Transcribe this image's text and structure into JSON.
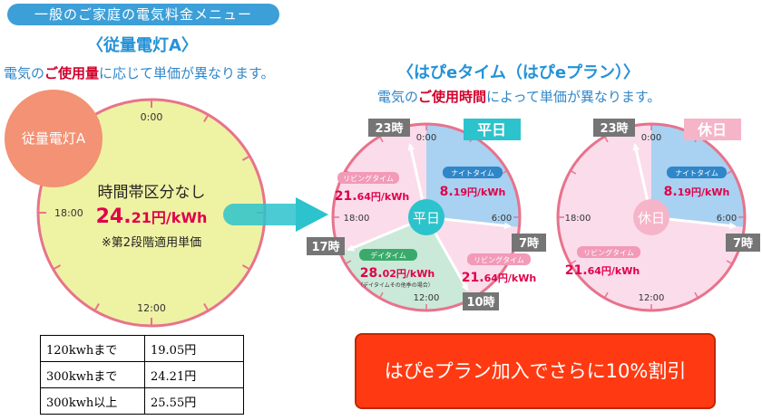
{
  "header": {
    "menu_pill": "一般のご家庭の電気料金メニュー",
    "left_title": "〈従量電灯A〉",
    "left_desc_pre": "電気の",
    "left_desc_em": "ご使用量",
    "left_desc_post": "に応じて単価が異なります。",
    "right_title": "〈はぴeタイム（はぴeプラン）〉",
    "right_desc_pre": "電気の",
    "right_desc_em": "ご使用時間",
    "right_desc_post": "によって単価が異なります。"
  },
  "left_clock": {
    "badge": "従量電灯A",
    "t0": "0:00",
    "t18": "18:00",
    "t12": "12:00",
    "line1": "時間帯区分なし",
    "price_big": "24.",
    "price_small": "21円/kWh",
    "note": "※第2段階適用単価"
  },
  "weekday_clock": {
    "header": "平日",
    "center": "平日",
    "h23": "23時",
    "h17": "17時",
    "h7": "7時",
    "h10": "10時",
    "t0": "0:00",
    "t6": "6:00",
    "t18": "18:00",
    "t12": "12:00",
    "night_label": "ナイトタイム",
    "night_big": "8.",
    "night_small": "19円/kWh",
    "living_label": "リビングタイム",
    "living_big": "21.",
    "living_small": "64円/kWh",
    "day_label": "デイタイム",
    "day_big": "28.",
    "day_small": "02円/kWh",
    "day_note": "（デイタイムその他季の場合）",
    "living2_label": "リビングタイム",
    "living2_big": "21.",
    "living2_small": "64円/kWh"
  },
  "holiday_clock": {
    "header": "休日",
    "center": "休日",
    "h23": "23時",
    "h7": "7時",
    "t0": "0:00",
    "t6": "6:00",
    "t18": "18:00",
    "t12": "12:00",
    "night_label": "ナイトタイム",
    "night_big": "8.",
    "night_small": "19円/kWh",
    "living_label": "リビングタイム",
    "living_big": "21.",
    "living_small": "64円/kWh"
  },
  "rates_table": [
    {
      "tier": "120kwhまで",
      "price": "19.05円"
    },
    {
      "tier": "300kwhまで",
      "price": "24.21円"
    },
    {
      "tier": "300kwh以上",
      "price": "25.55円"
    }
  ],
  "discount_box": "はぴeプラン加入でさらに10%割引",
  "colors": {
    "accent_blue": "#2592d6",
    "price_red": "#e0004a",
    "night_blue": "#a9d1f1",
    "living_pink": "#fbdcea",
    "day_green": "#cbe9d9",
    "dial_yellow": "#eef2a3",
    "badge_orange": "#f39274",
    "teal": "#2cc3cc"
  }
}
